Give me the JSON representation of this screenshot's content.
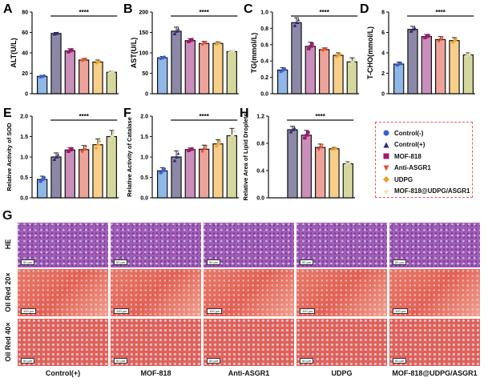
{
  "groups": [
    "Control(-)",
    "Control(+)",
    "MOF-818",
    "Anti-ASGR1",
    "UDPG",
    "MOF-818@UDPG/ASGR1"
  ],
  "colors": {
    "fills": [
      "#8fb8e8",
      "#8c89a8",
      "#c98fba",
      "#eea39a",
      "#f8cf8a",
      "#d5d89c"
    ],
    "markers": [
      "#3a5fcd",
      "#2e2a6e",
      "#a0186e",
      "#e8502a",
      "#f0a020",
      "#e8e4b0"
    ],
    "legend_border": "#e05a5a",
    "he_stain": "#a25cb5",
    "oil_red": "#e26055"
  },
  "significance": "****",
  "chart_data": [
    {
      "panel": "A",
      "type": "bar",
      "ylabel": "ALT(U/L)",
      "ylim": [
        0,
        80
      ],
      "yticks": [
        "0",
        "20",
        "40",
        "60",
        "80"
      ],
      "tickvals": [
        0,
        20,
        40,
        60,
        80
      ],
      "values": [
        17,
        59,
        42,
        33,
        31,
        21
      ],
      "errors": [
        1,
        1,
        2,
        1.5,
        2,
        1
      ],
      "offset": 0
    },
    {
      "panel": "B",
      "type": "bar",
      "ylabel": "AST(U/L)",
      "ylim": [
        0,
        200
      ],
      "yticks": [
        "0",
        "50",
        "100",
        "150",
        "200"
      ],
      "tickvals": [
        0,
        50,
        100,
        150,
        200
      ],
      "values": [
        88,
        153,
        130,
        123,
        123,
        103
      ],
      "errors": [
        3,
        10,
        5,
        5,
        4,
        2
      ],
      "offset": 0
    },
    {
      "panel": "C",
      "type": "bar",
      "ylabel": "TG(mmol/L)",
      "ylim": [
        0,
        1.0
      ],
      "yticks": [
        "0.0",
        "0.2",
        "0.4",
        "0.6",
        "0.8",
        "1.0"
      ],
      "tickvals": [
        0,
        0.2,
        0.4,
        0.6,
        0.8,
        1.0
      ],
      "values": [
        0.29,
        0.87,
        0.58,
        0.54,
        0.47,
        0.39
      ],
      "errors": [
        0.03,
        0.06,
        0.05,
        0.02,
        0.03,
        0.05
      ],
      "offset": 0
    },
    {
      "panel": "D",
      "type": "bar",
      "ylabel": "T-CHO(mmol/L)",
      "ylim": [
        0,
        8
      ],
      "yticks": [
        "0",
        "2",
        "4",
        "6",
        "8"
      ],
      "tickvals": [
        0,
        2,
        4,
        6,
        8
      ],
      "values": [
        2.9,
        6.3,
        5.6,
        5.3,
        5.2,
        3.8
      ],
      "errors": [
        0.2,
        0.3,
        0.2,
        0.3,
        0.3,
        0.2
      ],
      "offset": 0
    },
    {
      "panel": "E",
      "type": "bar",
      "ylabel": "Relative Activity of SOD",
      "ylim": [
        0,
        2.0
      ],
      "yticks": [
        "0.0",
        "0.5",
        "1.0",
        "1.5",
        "2.0"
      ],
      "tickvals": [
        0,
        0.5,
        1.0,
        1.5,
        2.0
      ],
      "values": [
        0.45,
        1.0,
        1.17,
        1.18,
        1.3,
        1.5
      ],
      "errors": [
        0.08,
        0.1,
        0.06,
        0.1,
        0.14,
        0.15
      ],
      "offset": 0
    },
    {
      "panel": "F",
      "type": "bar",
      "ylabel": "Relative Activity of Catalase",
      "ylim": [
        0,
        2.0
      ],
      "yticks": [
        "0.0",
        "0.5",
        "1.0",
        "1.5",
        "2.0"
      ],
      "tickvals": [
        0,
        0.5,
        1.0,
        1.5,
        2.0
      ],
      "values": [
        0.66,
        1.0,
        1.18,
        1.19,
        1.32,
        1.52
      ],
      "errors": [
        0.08,
        0.15,
        0.04,
        0.1,
        0.1,
        0.18
      ],
      "offset": 0
    },
    {
      "panel": "H",
      "type": "bar",
      "ylabel": "Relative Area of Lipid Droplets",
      "ylim": [
        0,
        1.2
      ],
      "yticks": [
        "0.0",
        "0.4",
        "0.8",
        "1.2"
      ],
      "tickvals": [
        0,
        0.4,
        0.8,
        1.2
      ],
      "values": [
        1.0,
        0.92,
        0.74,
        0.72,
        0.5
      ],
      "errors": [
        0.05,
        0.07,
        0.05,
        0.02,
        0.03
      ],
      "offset": 1
    }
  ],
  "grid": {
    "panel": "G",
    "rows": [
      "HE",
      "Oil Red 20×",
      "Oil Red 40×"
    ],
    "columns": [
      "Control(+)",
      "MOF-818",
      "Anti-ASGR1",
      "UDPG",
      "MOF-818@UDPG/ASGR1"
    ],
    "scalebars": [
      "50 μm",
      "100 μm",
      "50 μm"
    ]
  }
}
